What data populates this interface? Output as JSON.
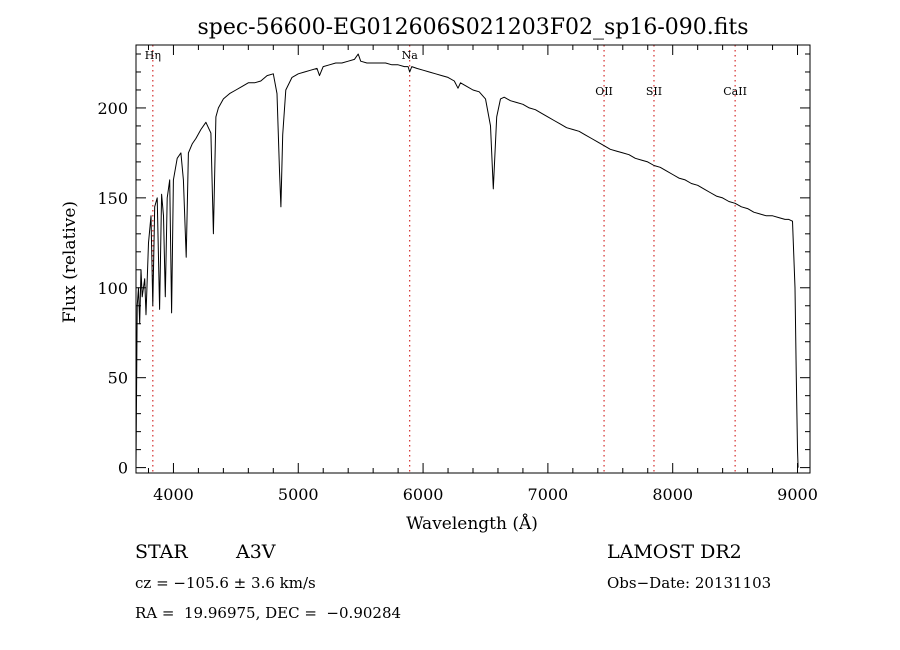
{
  "chart_data": {
    "type": "line",
    "title": "spec-56600-EG012606S021203F02_sp16-090.fits",
    "xlabel": "Wavelength (Å)",
    "ylabel": "Flux (relative)",
    "xlim": [
      3700,
      9100
    ],
    "ylim": [
      -3,
      235
    ],
    "xticks": [
      4000,
      5000,
      6000,
      7000,
      8000,
      9000
    ],
    "yticks": [
      0,
      50,
      100,
      150,
      200
    ],
    "grid": false,
    "line_color": "#000000",
    "marker_color": "#cc0000",
    "series": [
      {
        "x": [
          3700,
          3710,
          3720,
          3730,
          3740,
          3750,
          3770,
          3780,
          3800,
          3820,
          3835,
          3850,
          3870,
          3889,
          3905,
          3920,
          3935,
          3950,
          3970,
          3985,
          4000,
          4030,
          4060,
          4080,
          4102,
          4120,
          4150,
          4180,
          4220,
          4260,
          4300,
          4320,
          4340,
          4360,
          4400,
          4450,
          4500,
          4550,
          4600,
          4650,
          4700,
          4750,
          4800,
          4830,
          4850,
          4861,
          4875,
          4900,
          4950,
          5000,
          5050,
          5100,
          5150,
          5170,
          5200,
          5250,
          5300,
          5350,
          5400,
          5450,
          5480,
          5500,
          5550,
          5600,
          5650,
          5700,
          5750,
          5800,
          5850,
          5880,
          5893,
          5910,
          5950,
          6000,
          6050,
          6100,
          6150,
          6200,
          6250,
          6280,
          6300,
          6350,
          6400,
          6450,
          6500,
          6540,
          6563,
          6590,
          6620,
          6650,
          6700,
          6750,
          6800,
          6850,
          6900,
          6950,
          7000,
          7050,
          7100,
          7150,
          7200,
          7250,
          7300,
          7350,
          7400,
          7450,
          7500,
          7550,
          7600,
          7650,
          7700,
          7750,
          7800,
          7850,
          7900,
          7950,
          8000,
          8050,
          8100,
          8150,
          8200,
          8250,
          8300,
          8350,
          8400,
          8450,
          8500,
          8550,
          8600,
          8650,
          8700,
          8750,
          8800,
          8850,
          8900,
          8930,
          8960,
          8980,
          8990,
          9000,
          9005
        ],
        "y": [
          0,
          90,
          100,
          80,
          110,
          95,
          105,
          85,
          125,
          140,
          90,
          145,
          150,
          88,
          152,
          140,
          95,
          150,
          160,
          86,
          160,
          172,
          175,
          160,
          117,
          175,
          180,
          183,
          188,
          192,
          186,
          130,
          195,
          200,
          205,
          208,
          210,
          212,
          214,
          214,
          215,
          218,
          219,
          208,
          165,
          145,
          185,
          210,
          217,
          219,
          220,
          221,
          222,
          218,
          223,
          224,
          225,
          225,
          226,
          227,
          230,
          226,
          225,
          225,
          225,
          225,
          224,
          224,
          223,
          223,
          220,
          223,
          222,
          221,
          220,
          219,
          218,
          217,
          215,
          211,
          214,
          212,
          210,
          209,
          205,
          190,
          155,
          195,
          205,
          206,
          204,
          203,
          202,
          200,
          199,
          197,
          195,
          193,
          191,
          189,
          188,
          187,
          185,
          183,
          181,
          179,
          177,
          176,
          175,
          174,
          172,
          171,
          170,
          168,
          167,
          165,
          163,
          161,
          160,
          158,
          157,
          155,
          153,
          151,
          150,
          148,
          147,
          145,
          144,
          142,
          141,
          140,
          140,
          139,
          138,
          138,
          137,
          100,
          50,
          10,
          0
        ]
      }
    ],
    "line_markers": [
      {
        "label": "Hη",
        "x": 3835,
        "show_label": true
      },
      {
        "label": "Na",
        "x": 5893,
        "show_label": true
      },
      {
        "label": "OII",
        "x": 7450,
        "show_label": true
      },
      {
        "label": "SII",
        "x": 7850,
        "show_label": true
      },
      {
        "label": "CaII",
        "x": 8500,
        "show_label": true
      }
    ]
  },
  "info": {
    "object_type": "STAR",
    "subclass": "A3V",
    "survey": "LAMOST DR2",
    "velocity": "cz = −105.6 ± 3.6 km/s",
    "obs_date": "Obs−Date: 20131103",
    "coords": "RA =  19.96975, DEC =  −0.90284"
  }
}
